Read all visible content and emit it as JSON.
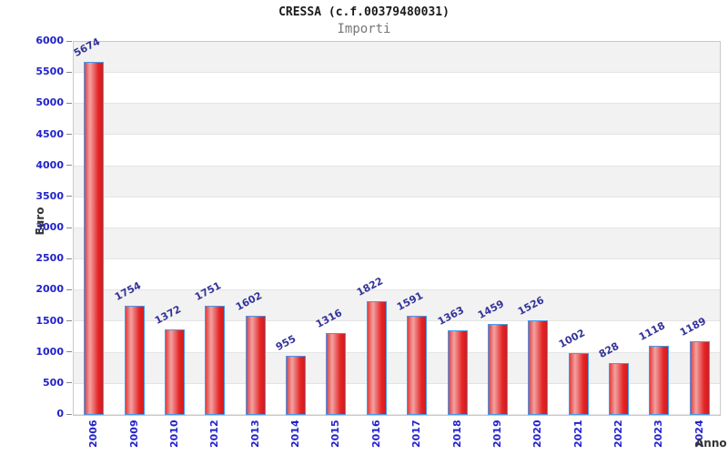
{
  "header": {
    "title": "CRESSA (c.f.00379480031)",
    "subtitle": "Importi"
  },
  "chart_data": {
    "type": "bar",
    "title": "CRESSA (c.f.00379480031)",
    "subtitle": "Importi",
    "xlabel": "Anno",
    "ylabel": "Euro",
    "categories": [
      "2006",
      "2009",
      "2010",
      "2012",
      "2013",
      "2014",
      "2015",
      "2016",
      "2017",
      "2018",
      "2019",
      "2020",
      "2021",
      "2022",
      "2023",
      "2024"
    ],
    "values": [
      5674,
      1754,
      1372,
      1751,
      1602,
      955,
      1316,
      1822,
      1591,
      1363,
      1459,
      1526,
      1002,
      828,
      1118,
      1189
    ],
    "ylim": [
      0,
      6000
    ],
    "ytick_step": 500,
    "legend_position": "none",
    "grid": "alternating-horizontal-bands",
    "colors": {
      "bar_main": "#e42525",
      "bar_highlight": "#f2a2a2",
      "bar_border": "#4499ee",
      "axis_tick_text": "#2222cc",
      "value_label_text": "#333399",
      "band_gray": "#f2f2f2",
      "plot_border": "#c9c9c9",
      "axis_title_text": "#333333",
      "subtitle_text": "#777777"
    }
  }
}
